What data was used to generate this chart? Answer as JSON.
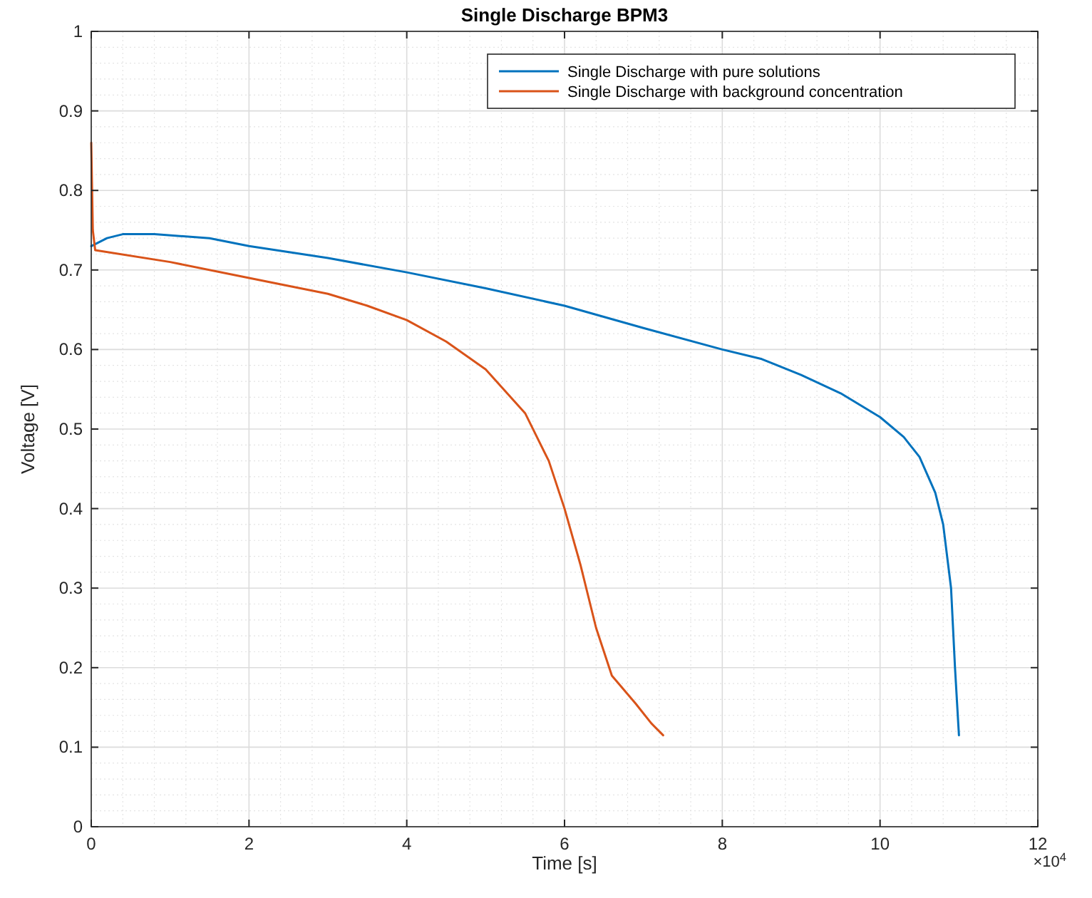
{
  "chart_data": {
    "type": "line",
    "title": "Single Discharge BPM3",
    "xlabel": "Time [s]",
    "ylabel": "Voltage [V]",
    "xlim": [
      0,
      12
    ],
    "xticks": [
      0,
      2,
      4,
      6,
      8,
      10,
      12
    ],
    "ylim": [
      0,
      1
    ],
    "yticks": [
      0,
      0.1,
      0.2,
      0.3,
      0.4,
      0.5,
      0.6,
      0.7,
      0.8,
      0.9,
      1
    ],
    "grid": true,
    "legend": "top right",
    "line_style": "solid",
    "marker": "none",
    "annotations": [
      "×10$^{4}$"
    ],
    "series": [
      {
        "name": "Single Discharge with pure solutions",
        "color": "#0072bd",
        "x": [
          0,
          0.2,
          0.4,
          0.8,
          1.5,
          2,
          3,
          4,
          5,
          6,
          7,
          8,
          8.5,
          9,
          9.5,
          10,
          10.3,
          10.5,
          10.7,
          10.8,
          10.9,
          10.95,
          11.0
        ],
        "values": [
          0.73,
          0.74,
          0.745,
          0.745,
          0.74,
          0.73,
          0.715,
          0.697,
          0.677,
          0.655,
          0.627,
          0.6,
          0.588,
          0.568,
          0.545,
          0.515,
          0.49,
          0.465,
          0.42,
          0.38,
          0.3,
          0.2,
          0.115
        ]
      },
      {
        "name": "Single Discharge with background concentration",
        "color": "#d95319",
        "x": [
          0,
          0.02,
          0.05,
          1,
          2,
          3,
          3.5,
          4,
          4.5,
          5,
          5.5,
          5.8,
          6,
          6.2,
          6.4,
          6.6,
          6.9,
          7.1,
          7.25
        ],
        "values": [
          0.86,
          0.75,
          0.725,
          0.71,
          0.69,
          0.67,
          0.655,
          0.637,
          0.61,
          0.575,
          0.52,
          0.46,
          0.4,
          0.33,
          0.25,
          0.19,
          0.155,
          0.13,
          0.115
        ]
      }
    ]
  }
}
